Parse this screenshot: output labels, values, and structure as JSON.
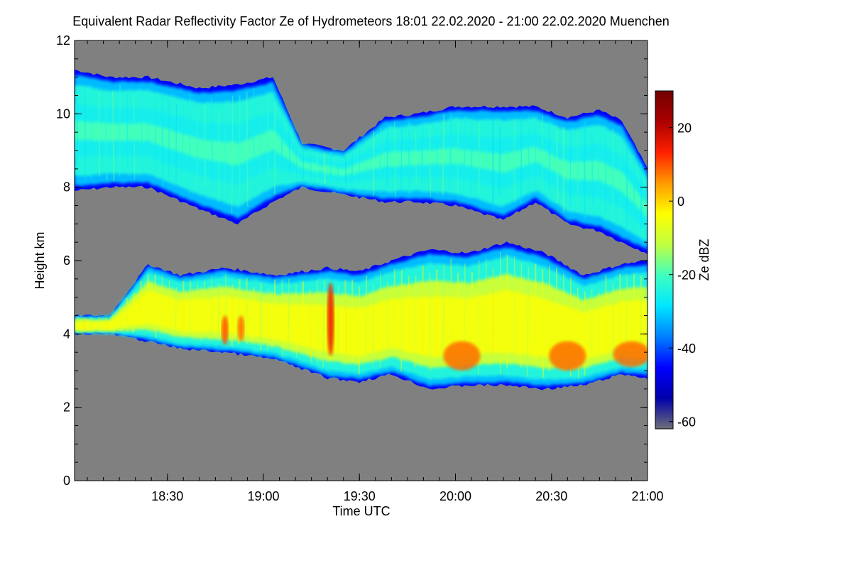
{
  "chart_data": {
    "type": "heatmap",
    "title": "Equivalent Radar Reflectivity Factor Ze of Hydrometeors   18:01 22.02.2020 - 21:00 22.02.2020 Muenchen",
    "xlabel": "Time UTC",
    "ylabel": "Height km",
    "x_ticks": [
      "18:30",
      "19:00",
      "19:30",
      "20:00",
      "20:30",
      "21:00"
    ],
    "x_tick_minutes": [
      30,
      60,
      90,
      120,
      150,
      180
    ],
    "xlim_minutes": [
      1,
      180
    ],
    "y_ticks": [
      "0",
      "2",
      "4",
      "6",
      "8",
      "10",
      "12"
    ],
    "y_tick_values": [
      0,
      2,
      4,
      6,
      8,
      10,
      12
    ],
    "ylim": [
      0,
      12
    ],
    "colorbar": {
      "label": "Ze dBZ",
      "range": [
        -62,
        30
      ],
      "ticks": [
        "20",
        "0",
        "-20",
        "-40",
        "-60"
      ],
      "tick_values": [
        20,
        0,
        -20,
        -40,
        -60
      ],
      "colors": [
        "#6e6e78",
        "#0000aa",
        "#0000ff",
        "#0080ff",
        "#00e6ff",
        "#40ffbf",
        "#c0ff40",
        "#ffff00",
        "#ff9900",
        "#ff2000",
        "#aa0000",
        "#700000"
      ]
    },
    "background_color": "#808080",
    "layers": [
      {
        "name": "upper cloud layer (cirrus)",
        "times": [
          1,
          12,
          24,
          40,
          52,
          63,
          72,
          85,
          98,
          108,
          120,
          135,
          145,
          155,
          165,
          172,
          180
        ],
        "base_km": [
          7.9,
          8.0,
          8.0,
          7.4,
          7.0,
          7.6,
          8.0,
          7.8,
          7.6,
          7.6,
          7.5,
          7.1,
          7.6,
          7.0,
          6.8,
          6.5,
          6.2
        ],
        "top_km": [
          11.2,
          11.0,
          11.0,
          10.7,
          10.8,
          11.0,
          9.2,
          9.0,
          9.9,
          10.0,
          10.2,
          10.2,
          10.2,
          9.9,
          10.1,
          9.8,
          8.5
        ],
        "core_dbz": -20
      },
      {
        "name": "lower precipitation layer",
        "times": [
          1,
          12,
          24,
          34,
          48,
          64,
          80,
          90,
          100,
          112,
          124,
          136,
          148,
          160,
          172,
          180
        ],
        "base_km": [
          4.0,
          4.0,
          3.8,
          3.6,
          3.5,
          3.3,
          2.8,
          2.7,
          2.9,
          2.5,
          2.6,
          2.6,
          2.5,
          2.6,
          2.9,
          2.8
        ],
        "top_km": [
          4.5,
          4.5,
          5.9,
          5.6,
          5.8,
          5.6,
          5.8,
          5.7,
          6.0,
          6.3,
          6.2,
          6.5,
          6.2,
          5.6,
          5.9,
          6.0
        ],
        "core_dbz": -5
      }
    ],
    "convective_cores": [
      {
        "time_min": 48,
        "base_km": 3.7,
        "top_km": 4.5,
        "peak_dbz": 10
      },
      {
        "time_min": 53,
        "base_km": 3.8,
        "top_km": 4.5,
        "peak_dbz": 8
      },
      {
        "time_min": 81,
        "base_km": 3.4,
        "top_km": 5.4,
        "peak_dbz": 15
      },
      {
        "time_min": 122,
        "base_km": 3.0,
        "top_km": 3.8,
        "peak_dbz": 8
      },
      {
        "time_min": 155,
        "base_km": 3.0,
        "top_km": 3.8,
        "peak_dbz": 8
      },
      {
        "time_min": 175,
        "base_km": 3.1,
        "top_km": 3.8,
        "peak_dbz": 8
      }
    ]
  }
}
